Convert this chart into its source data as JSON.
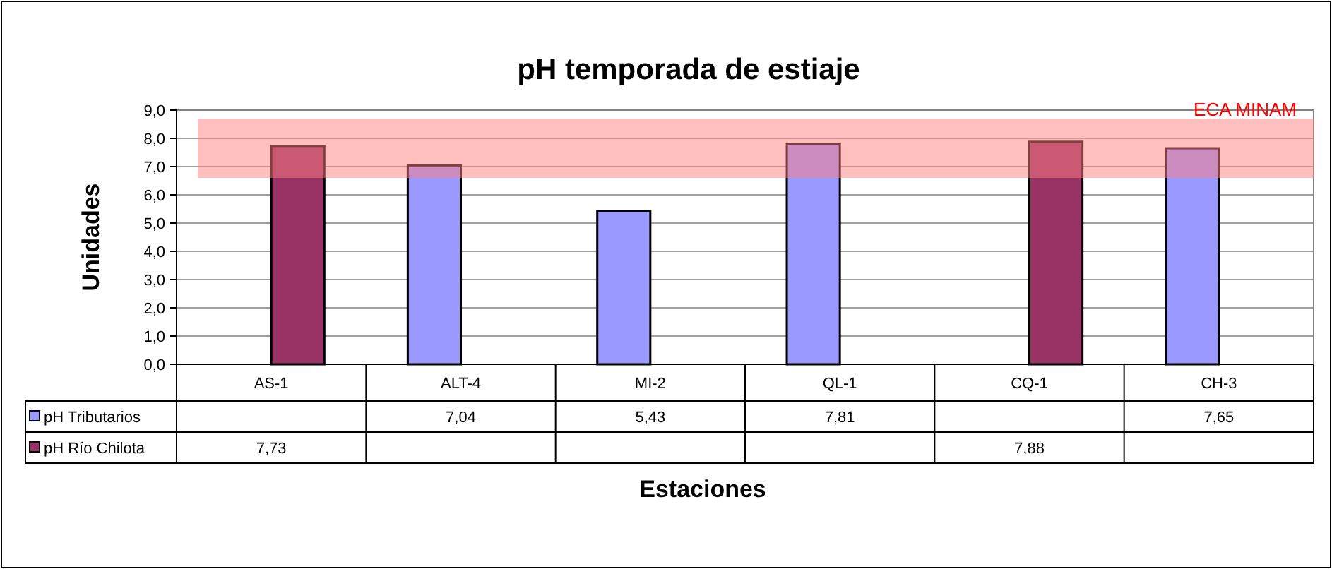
{
  "chart_data": {
    "type": "bar",
    "title": "pH temporada de estiaje",
    "xlabel": "Estaciones",
    "ylabel": "Unidades",
    "categories": [
      "AS-1",
      "ALT-4",
      "MI-2",
      "QL-1",
      "CQ-1",
      "CH-3"
    ],
    "series": [
      {
        "name": "pH Tributarios",
        "color": "#9999ff",
        "values": [
          null,
          7.04,
          5.43,
          7.81,
          null,
          7.65
        ],
        "value_labels": [
          null,
          "7,04",
          "5,43",
          "7,81",
          null,
          "7,65"
        ]
      },
      {
        "name": "pH Río Chilota",
        "color": "#993366",
        "values": [
          7.73,
          null,
          null,
          null,
          7.88,
          null
        ],
        "value_labels": [
          "7,73",
          null,
          null,
          null,
          "7,88",
          null
        ]
      }
    ],
    "ylim": [
      0,
      9
    ],
    "yticks": [
      {
        "value": 0,
        "label": "0,0"
      },
      {
        "value": 1,
        "label": "1,0"
      },
      {
        "value": 2,
        "label": "2,0"
      },
      {
        "value": 3,
        "label": "3,0"
      },
      {
        "value": 4,
        "label": "4,0"
      },
      {
        "value": 5,
        "label": "5,0"
      },
      {
        "value": 6,
        "label": "6,0"
      },
      {
        "value": 7,
        "label": "7,0"
      },
      {
        "value": 8,
        "label": "8,0"
      },
      {
        "value": 9,
        "label": "9,0"
      }
    ],
    "bands": [
      {
        "axis": "y",
        "from": 6.6,
        "to": 8.7,
        "label": "ECA MINAM",
        "color": "#ff8080"
      }
    ],
    "grid": "y",
    "legend": "bottom left"
  }
}
